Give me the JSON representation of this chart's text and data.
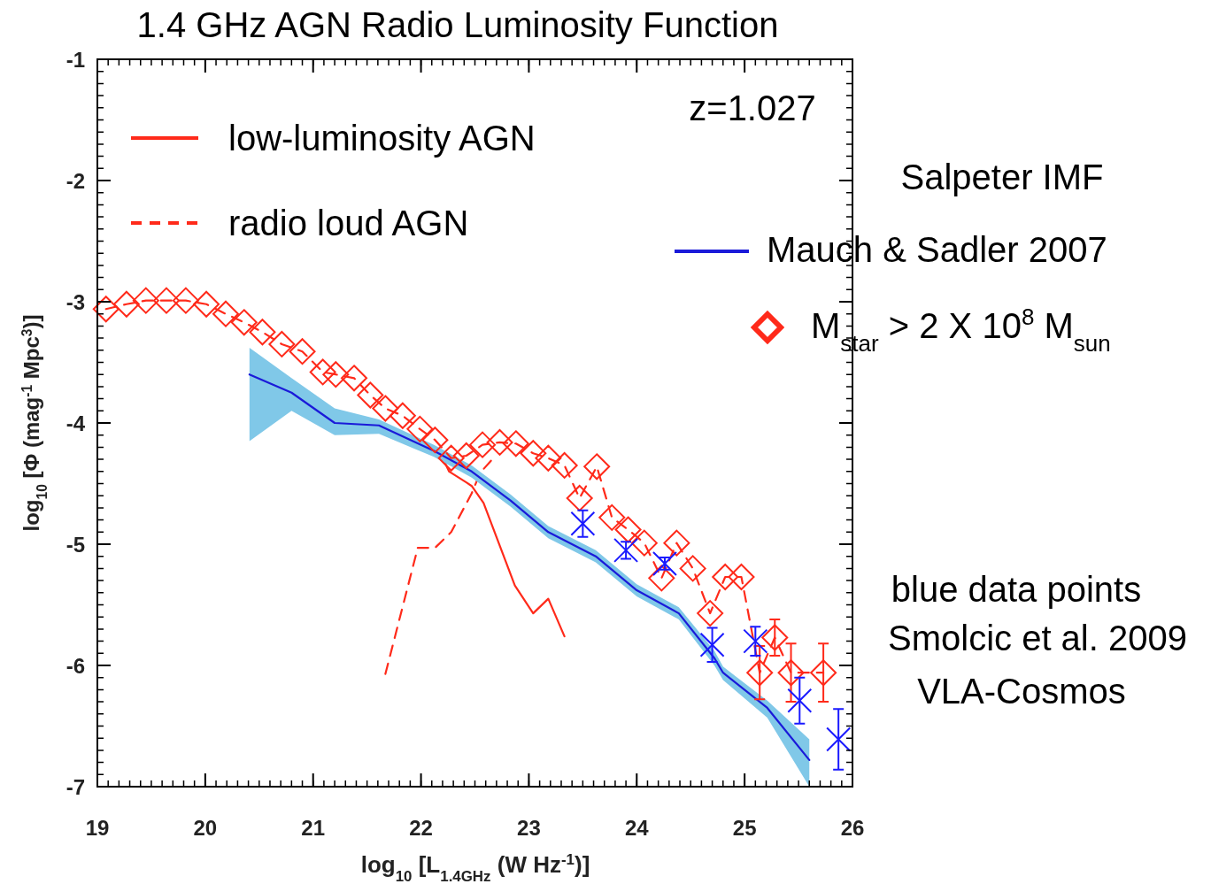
{
  "chart_data": {
    "type": "line",
    "title": "1.4 GHz AGN Radio Luminosity Function",
    "xlabel": "log$_{10}$ [L$_{1.4GHz}$ (W Hz$^{-1}$)]",
    "ylabel": "log$_{10}$ [Φ (mag$^{-1}$ Mpc$^{3}$)]",
    "xlim": [
      19,
      26
    ],
    "xticks": [
      19,
      20,
      21,
      22,
      23,
      24,
      25,
      26
    ],
    "ylim": [
      -7,
      -1
    ],
    "yticks": [
      -7,
      -6,
      -5,
      -4,
      -3,
      -2,
      -1
    ],
    "grid": false,
    "legend": "top",
    "annotations": [
      "z=1.027",
      "Salpeter IMF",
      "blue data points",
      "Smolcic et al. 2009",
      "VLA-Cosmos"
    ],
    "series": [
      {
        "name": "low-luminosity AGN",
        "color": "#ff2a1a",
        "line_style": "solid",
        "marker": "none",
        "x": [
          22.17,
          22.26,
          22.42,
          22.47,
          22.58,
          22.87,
          23.04,
          23.18,
          23.33
        ],
        "values": [
          -4.23,
          -4.4,
          -4.49,
          -4.52,
          -4.66,
          -5.34,
          -5.57,
          -5.45,
          -5.76
        ]
      },
      {
        "name": "radio loud AGN",
        "color": "#ff2a1a",
        "line_style": "dashed",
        "marker": "none",
        "x": [
          21.67,
          21.97,
          22.13,
          22.28,
          22.47,
          22.55,
          22.67
        ],
        "values": [
          -6.07,
          -5.03,
          -5.03,
          -4.9,
          -4.58,
          -4.41,
          -4.29
        ]
      },
      {
        "name": "Mauch & Sadler 2007",
        "color": "#1a1ad9",
        "line_style": "solid",
        "marker": "none",
        "x": [
          20.41,
          20.8,
          21.2,
          21.61,
          22.12,
          22.47,
          22.83,
          23.18,
          23.62,
          24.0,
          24.39,
          24.72,
          24.8,
          25.21,
          25.6
        ],
        "values": [
          -3.6,
          -3.75,
          -4.0,
          -4.02,
          -4.23,
          -4.4,
          -4.64,
          -4.9,
          -5.1,
          -5.38,
          -5.57,
          -5.94,
          -6.06,
          -6.35,
          -6.78
        ],
        "lower": [
          -4.15,
          -3.9,
          -4.1,
          -4.09,
          -4.28,
          -4.45,
          -4.69,
          -4.95,
          -5.15,
          -5.43,
          -5.62,
          -6.0,
          -6.12,
          -6.43,
          -7.0
        ],
        "upper": [
          -3.38,
          -3.63,
          -3.88,
          -3.97,
          -4.18,
          -4.35,
          -4.59,
          -4.85,
          -5.05,
          -5.33,
          -5.52,
          -5.88,
          -6.01,
          -6.29,
          -6.61
        ]
      },
      {
        "name": "M$_{star}$ > 2 X 10$^{8}$ M$_{sun}$",
        "type": "line",
        "color": "#ff2a1a",
        "line_style": "dashed",
        "marker": "diamond",
        "x": [
          19.08,
          19.27,
          19.45,
          19.64,
          19.82,
          20.01,
          20.19,
          20.36,
          20.53,
          20.71,
          20.9,
          21.09,
          21.21,
          21.38,
          21.53,
          21.67,
          21.83,
          21.99,
          22.13,
          22.28,
          22.42,
          22.57,
          22.73,
          22.88,
          23.04,
          23.18,
          23.33,
          23.47,
          23.63,
          23.77,
          23.92,
          24.07,
          24.23,
          24.37,
          24.52,
          24.68,
          24.82,
          24.97,
          25.14,
          25.28,
          25.43,
          25.73
        ],
        "values": [
          -3.06,
          -3.02,
          -2.99,
          -2.99,
          -2.99,
          -3.02,
          -3.1,
          -3.17,
          -3.25,
          -3.35,
          -3.41,
          -3.58,
          -3.6,
          -3.63,
          -3.77,
          -3.88,
          -3.94,
          -4.05,
          -4.14,
          -4.29,
          -4.27,
          -4.18,
          -4.16,
          -4.17,
          -4.25,
          -4.29,
          -4.35,
          -4.62,
          -4.36,
          -4.78,
          -4.88,
          -4.99,
          -5.28,
          -4.99,
          -5.2,
          -5.57,
          -5.27,
          -5.27,
          -6.06,
          -5.77,
          -6.06,
          -6.06
        ],
        "errors": [
          null,
          null,
          null,
          null,
          null,
          null,
          null,
          null,
          null,
          null,
          null,
          null,
          null,
          null,
          null,
          null,
          null,
          null,
          null,
          null,
          null,
          null,
          null,
          null,
          null,
          null,
          null,
          null,
          null,
          null,
          null,
          null,
          null,
          null,
          null,
          null,
          null,
          null,
          0.22,
          0.15,
          0.24,
          0.24
        ]
      },
      {
        "type": "scatter",
        "color": "#1a1aff",
        "marker": "cross",
        "x": [
          23.5,
          23.9,
          24.26,
          24.7,
          25.1,
          25.51,
          25.87
        ],
        "values": [
          -4.83,
          -5.05,
          -5.16,
          -5.83,
          -5.8,
          -6.29,
          -6.61
        ],
        "errors": [
          0.11,
          0.07,
          0.05,
          0.14,
          0.12,
          0.19,
          0.25
        ]
      }
    ]
  }
}
